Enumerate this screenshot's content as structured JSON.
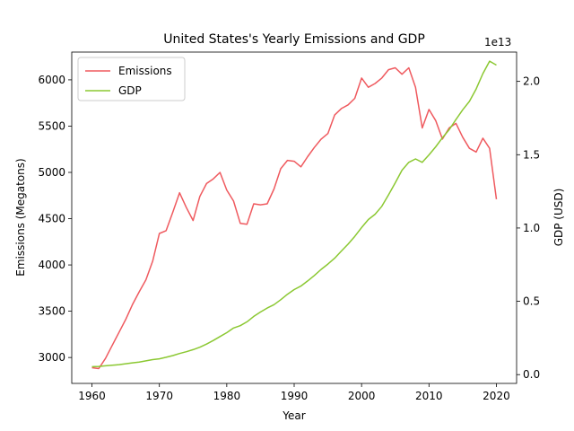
{
  "chart_data": {
    "type": "line",
    "title": "United States's Yearly Emissions and GDP",
    "xlabel": "Year",
    "ylabel": "Emissions (Megatons)",
    "y2label": "GDP (USD)",
    "y2_offset_text": "1e13",
    "xlim": [
      1957,
      2023
    ],
    "ylim": [
      2720,
      6300
    ],
    "y2lim": [
      -0.06,
      2.2
    ],
    "x_ticks": [
      1960,
      1970,
      1980,
      1990,
      2000,
      2010,
      2020
    ],
    "y_ticks": [
      3000,
      3500,
      4000,
      4500,
      5000,
      5500,
      6000
    ],
    "y2_ticks": [
      "0.0",
      "0.5",
      "1.0",
      "1.5",
      "2.0"
    ],
    "legend_position": "top-left",
    "colors": {
      "emissions": "#ef5a5f",
      "gdp": "#8bc832"
    },
    "x": [
      1960,
      1961,
      1962,
      1963,
      1964,
      1965,
      1966,
      1967,
      1968,
      1969,
      1970,
      1971,
      1972,
      1973,
      1974,
      1975,
      1976,
      1977,
      1978,
      1979,
      1980,
      1981,
      1982,
      1983,
      1984,
      1985,
      1986,
      1987,
      1988,
      1989,
      1990,
      1991,
      1992,
      1993,
      1994,
      1995,
      1996,
      1997,
      1998,
      1999,
      2000,
      2001,
      2002,
      2003,
      2004,
      2005,
      2006,
      2007,
      2008,
      2009,
      2010,
      2011,
      2012,
      2013,
      2014,
      2015,
      2016,
      2017,
      2018,
      2019,
      2020
    ],
    "series": [
      {
        "name": "Emissions",
        "axis": "left",
        "values": [
          2890,
          2880,
          2990,
          3130,
          3270,
          3410,
          3570,
          3710,
          3840,
          4040,
          4340,
          4370,
          4570,
          4780,
          4620,
          4480,
          4740,
          4880,
          4930,
          5000,
          4810,
          4690,
          4450,
          4440,
          4660,
          4650,
          4660,
          4820,
          5040,
          5130,
          5120,
          5060,
          5170,
          5270,
          5360,
          5420,
          5620,
          5690,
          5730,
          5800,
          6020,
          5920,
          5960,
          6020,
          6110,
          6130,
          6060,
          6130,
          5920,
          5480,
          5680,
          5560,
          5360,
          5480,
          5530,
          5380,
          5260,
          5220,
          5370,
          5260,
          4710
        ]
      },
      {
        "name": "GDP",
        "axis": "right",
        "units_scale": "1e13",
        "values": [
          0.054,
          0.056,
          0.06,
          0.064,
          0.068,
          0.074,
          0.08,
          0.086,
          0.094,
          0.102,
          0.108,
          0.118,
          0.13,
          0.144,
          0.156,
          0.17,
          0.187,
          0.208,
          0.233,
          0.26,
          0.286,
          0.318,
          0.334,
          0.36,
          0.397,
          0.427,
          0.454,
          0.477,
          0.511,
          0.548,
          0.58,
          0.604,
          0.639,
          0.676,
          0.718,
          0.754,
          0.794,
          0.843,
          0.89,
          0.943,
          1.003,
          1.058,
          1.094,
          1.148,
          1.226,
          1.308,
          1.394,
          1.448,
          1.471,
          1.448,
          1.499,
          1.554,
          1.616,
          1.67,
          1.74,
          1.806,
          1.864,
          1.948,
          2.053,
          2.138,
          2.111
        ]
      }
    ]
  }
}
